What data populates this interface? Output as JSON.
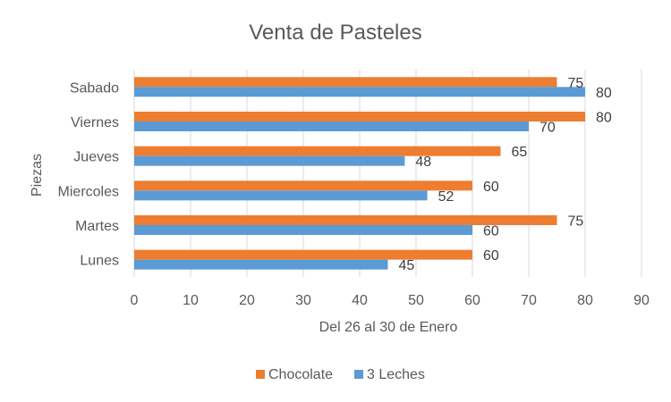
{
  "chart_data": {
    "type": "bar",
    "orientation": "horizontal",
    "title": "Venta de Pasteles",
    "xlabel": "Del 26 al 30 de Enero",
    "ylabel": "Piezas",
    "categories": [
      "Lunes",
      "Martes",
      "Miercoles",
      "Jueves",
      "Viernes",
      "Sabado"
    ],
    "series": [
      {
        "name": "Chocolate",
        "color": "#ED7D31",
        "values": [
          60,
          75,
          60,
          65,
          80,
          75
        ]
      },
      {
        "name": "3 Leches",
        "color": "#5B9BD5",
        "values": [
          45,
          60,
          52,
          48,
          70,
          80
        ]
      }
    ],
    "xlim": [
      0,
      90
    ],
    "xticks": [
      0,
      10,
      20,
      30,
      40,
      50,
      60,
      70,
      80,
      90
    ],
    "grid": true,
    "legend": "bottom"
  }
}
